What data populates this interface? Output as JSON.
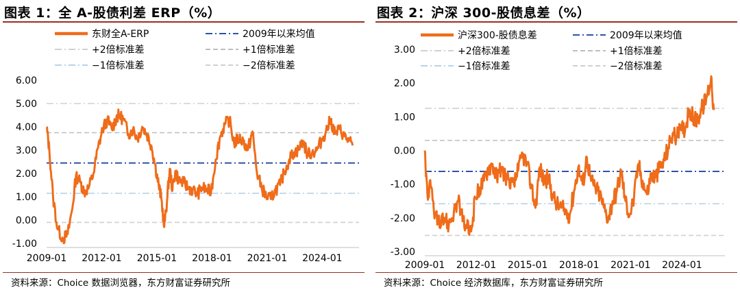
{
  "chart_data": [
    {
      "type": "line",
      "title": "图表 1：全 A-股债利差 ERP（%）",
      "source": "资料来源：Choice 数据浏览器，东方财富证券研究所",
      "xlabel": "",
      "ylabel": "",
      "x_ticks": [
        "2009-01",
        "2012-01",
        "2015-01",
        "2018-01",
        "2021-01",
        "2024-01"
      ],
      "y_ticks": [
        "6.00",
        "5.00",
        "4.00",
        "3.00",
        "2.00",
        "1.00",
        "0.00",
        "-1.00"
      ],
      "ylim": [
        -1,
        6
      ],
      "xlim": [
        2009.0,
        2026.0
      ],
      "legend_position": "top",
      "grid": false,
      "series": [
        {
          "name": "东财全A-ERP",
          "color": "#ef6c1a",
          "style": "solid",
          "x": [
            2009.0,
            2009.15,
            2009.35,
            2009.6,
            2009.9,
            2010.15,
            2010.4,
            2010.6,
            2010.85,
            2011.05,
            2011.3,
            2011.55,
            2011.8,
            2012.05,
            2012.3,
            2012.55,
            2012.8,
            2012.95,
            2013.2,
            2013.45,
            2013.7,
            2013.95,
            2014.2,
            2014.45,
            2014.7,
            2014.9,
            2015.1,
            2015.25,
            2015.4,
            2015.55,
            2015.7,
            2015.85,
            2016.0,
            2016.2,
            2016.45,
            2016.7,
            2016.95,
            2017.2,
            2017.45,
            2017.7,
            2017.95,
            2018.2,
            2018.45,
            2018.7,
            2018.95,
            2019.2,
            2019.45,
            2019.7,
            2019.95,
            2020.2,
            2020.45,
            2020.7,
            2020.95,
            2021.2,
            2021.45,
            2021.7,
            2021.95,
            2022.2,
            2022.45,
            2022.7,
            2022.95,
            2023.2,
            2023.45,
            2023.7,
            2023.95,
            2024.2,
            2024.45,
            2024.7,
            2024.95,
            2025.2,
            2025.45,
            2025.65
          ],
          "y": [
            4.0,
            3.0,
            1.0,
            -0.4,
            -0.8,
            -0.6,
            0.5,
            1.9,
            1.6,
            1.2,
            1.4,
            2.0,
            3.1,
            3.9,
            4.3,
            3.9,
            4.4,
            4.5,
            4.3,
            3.7,
            3.9,
            3.5,
            4.0,
            3.7,
            3.2,
            2.4,
            1.5,
            0.9,
            -0.3,
            0.8,
            2.2,
            1.3,
            2.1,
            1.7,
            1.6,
            1.4,
            1.3,
            1.1,
            1.4,
            1.3,
            1.2,
            2.6,
            3.6,
            4.1,
            4.3,
            3.3,
            3.5,
            3.4,
            3.0,
            3.8,
            2.0,
            1.4,
            1.0,
            0.9,
            1.3,
            1.5,
            2.1,
            2.6,
            2.9,
            3.0,
            3.4,
            2.8,
            2.9,
            3.0,
            3.4,
            3.8,
            4.3,
            3.7,
            3.9,
            3.6,
            3.4,
            3.2
          ]
        },
        {
          "name": "2009年以来均值",
          "color": "#2e52a6",
          "style": "dashdot",
          "value": 2.45
        },
        {
          "name": "+2倍标准差",
          "color": "#d0d0d0",
          "style": "dashdot",
          "value": 5.0
        },
        {
          "name": "+1倍标准差",
          "color": "#bdbdbd",
          "style": "dashed",
          "value": 3.75
        },
        {
          "name": "−1倍标准差",
          "color": "#b7d3ea",
          "style": "dashdot",
          "value": 1.15
        },
        {
          "name": "−2倍标准差",
          "color": "#d0d0d0",
          "style": "dashed",
          "value": -0.1
        }
      ]
    },
    {
      "type": "line",
      "title": "图表 2：沪深 300-股债息差（%）",
      "source": "资料来源：Choice 经济数据库，东方财富证券研究所",
      "xlabel": "",
      "ylabel": "",
      "x_ticks": [
        "2009-01",
        "2012-01",
        "2015-01",
        "2018-01",
        "2021-01",
        "2024-01"
      ],
      "y_ticks": [
        "3.00",
        "2.00",
        "1.00",
        "0.00",
        "-1.00",
        "-2.00",
        "-3.00"
      ],
      "ylim": [
        -3,
        3
      ],
      "xlim": [
        2009.0,
        2026.5
      ],
      "legend_position": "top",
      "grid": false,
      "series": [
        {
          "name": "沪深300-股债息差",
          "color": "#ef6c1a",
          "style": "solid",
          "x": [
            2009.0,
            2009.15,
            2009.35,
            2009.6,
            2009.9,
            2010.15,
            2010.4,
            2010.7,
            2010.95,
            2011.2,
            2011.45,
            2011.7,
            2011.95,
            2012.2,
            2012.45,
            2012.7,
            2012.95,
            2013.2,
            2013.45,
            2013.7,
            2013.95,
            2014.2,
            2014.45,
            2014.7,
            2014.95,
            2015.2,
            2015.45,
            2015.7,
            2015.95,
            2016.2,
            2016.45,
            2016.7,
            2016.95,
            2017.2,
            2017.45,
            2017.7,
            2017.95,
            2018.2,
            2018.45,
            2018.7,
            2018.95,
            2019.2,
            2019.45,
            2019.7,
            2019.95,
            2020.2,
            2020.45,
            2020.7,
            2020.95,
            2021.2,
            2021.45,
            2021.7,
            2021.95,
            2022.2,
            2022.45,
            2022.7,
            2022.95,
            2023.2,
            2023.45,
            2023.7,
            2023.95,
            2024.2,
            2024.45,
            2024.7,
            2024.95,
            2025.2,
            2025.45,
            2025.7,
            2025.85
          ],
          "y": [
            0.0,
            -1.3,
            -1.1,
            -1.9,
            -2.3,
            -2.0,
            -2.2,
            -1.8,
            -1.5,
            -2.1,
            -2.3,
            -2.4,
            -1.4,
            -1.1,
            -0.9,
            -0.5,
            -0.4,
            -0.8,
            -0.6,
            -0.7,
            -1.1,
            -1.0,
            -0.6,
            -0.1,
            -0.4,
            -1.0,
            -1.7,
            -0.5,
            -0.9,
            -0.8,
            -1.3,
            -1.6,
            -1.7,
            -1.8,
            -1.9,
            -1.2,
            -0.5,
            -1.0,
            -0.2,
            -0.9,
            -1.1,
            -1.3,
            -1.7,
            -2.0,
            -1.5,
            -1.2,
            -0.6,
            -1.5,
            -1.9,
            -1.4,
            -0.4,
            -0.9,
            -1.3,
            -0.7,
            -0.8,
            -0.5,
            -0.3,
            0.1,
            0.5,
            0.4,
            0.6,
            0.7,
            1.2,
            0.9,
            1.0,
            1.3,
            1.6,
            2.2,
            1.2
          ]
        },
        {
          "name": "2009年以来均值",
          "color": "#2e52a6",
          "style": "dashdot",
          "value": -0.62
        },
        {
          "name": "+2倍标准差",
          "color": "#d0d0d0",
          "style": "dashdot",
          "value": 1.25
        },
        {
          "name": "+1倍标准差",
          "color": "#bdbdbd",
          "style": "dashed",
          "value": 0.3
        },
        {
          "name": "−1倍标准差",
          "color": "#b7d3ea",
          "style": "dashdot",
          "value": -1.58
        },
        {
          "name": "−2倍标准差",
          "color": "#d0d0d0",
          "style": "dashed",
          "value": -2.52
        }
      ]
    }
  ]
}
